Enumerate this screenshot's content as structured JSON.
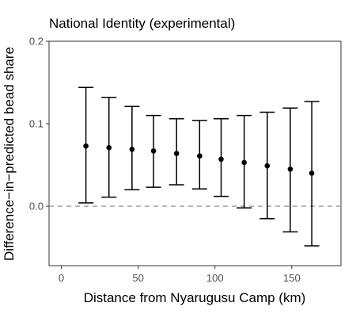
{
  "chart_data": {
    "type": "scatter",
    "title": "National Identity (experimental)",
    "xlabel": "Distance from Nyarugusu Camp (km)",
    "ylabel": "Difference−in−predicted bead share",
    "xlim": [
      -8,
      182
    ],
    "ylim": [
      -0.072,
      0.2
    ],
    "x_ticks": [
      0,
      50,
      100,
      150
    ],
    "x_tick_labels": [
      "0",
      "50",
      "100",
      "150"
    ],
    "y_ticks": [
      0.0,
      0.1,
      0.2
    ],
    "y_tick_labels": [
      "0.0",
      "0.1",
      "0.2"
    ],
    "grid": false,
    "reference_line": {
      "y": 0.0,
      "style": "dashed"
    },
    "series": [
      {
        "x": [
          16,
          31,
          46,
          60,
          75,
          90,
          104,
          119,
          134,
          149,
          163
        ],
        "y": [
          0.073,
          0.071,
          0.069,
          0.067,
          0.064,
          0.061,
          0.057,
          0.053,
          0.049,
          0.045,
          0.04
        ],
        "lower": [
          0.004,
          0.011,
          0.02,
          0.023,
          0.026,
          0.021,
          0.012,
          -0.002,
          -0.015,
          -0.031,
          -0.048
        ],
        "upper": [
          0.144,
          0.132,
          0.121,
          0.11,
          0.106,
          0.104,
          0.106,
          0.11,
          0.114,
          0.119,
          0.127
        ]
      }
    ]
  }
}
